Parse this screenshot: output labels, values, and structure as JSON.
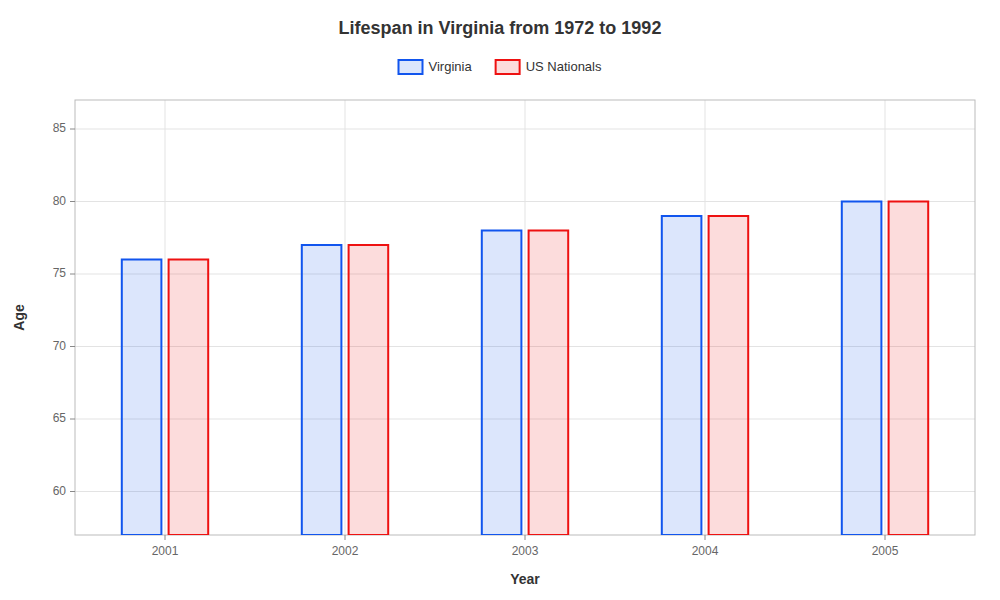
{
  "chart_data": {
    "type": "bar",
    "title": "Lifespan in Virginia from 1972 to 1992",
    "xlabel": "Year",
    "ylabel": "Age",
    "categories": [
      "2001",
      "2002",
      "2003",
      "2004",
      "2005"
    ],
    "series": [
      {
        "name": "Virginia",
        "color": "#1155ee",
        "values": [
          76,
          77,
          78,
          79,
          80
        ]
      },
      {
        "name": "US Nationals",
        "color": "#ee1111",
        "values": [
          76,
          77,
          78,
          79,
          80
        ]
      }
    ],
    "ylim": [
      57,
      87
    ],
    "yticks": [
      60,
      65,
      70,
      75,
      80,
      85
    ],
    "grid": true,
    "legend": "top"
  }
}
